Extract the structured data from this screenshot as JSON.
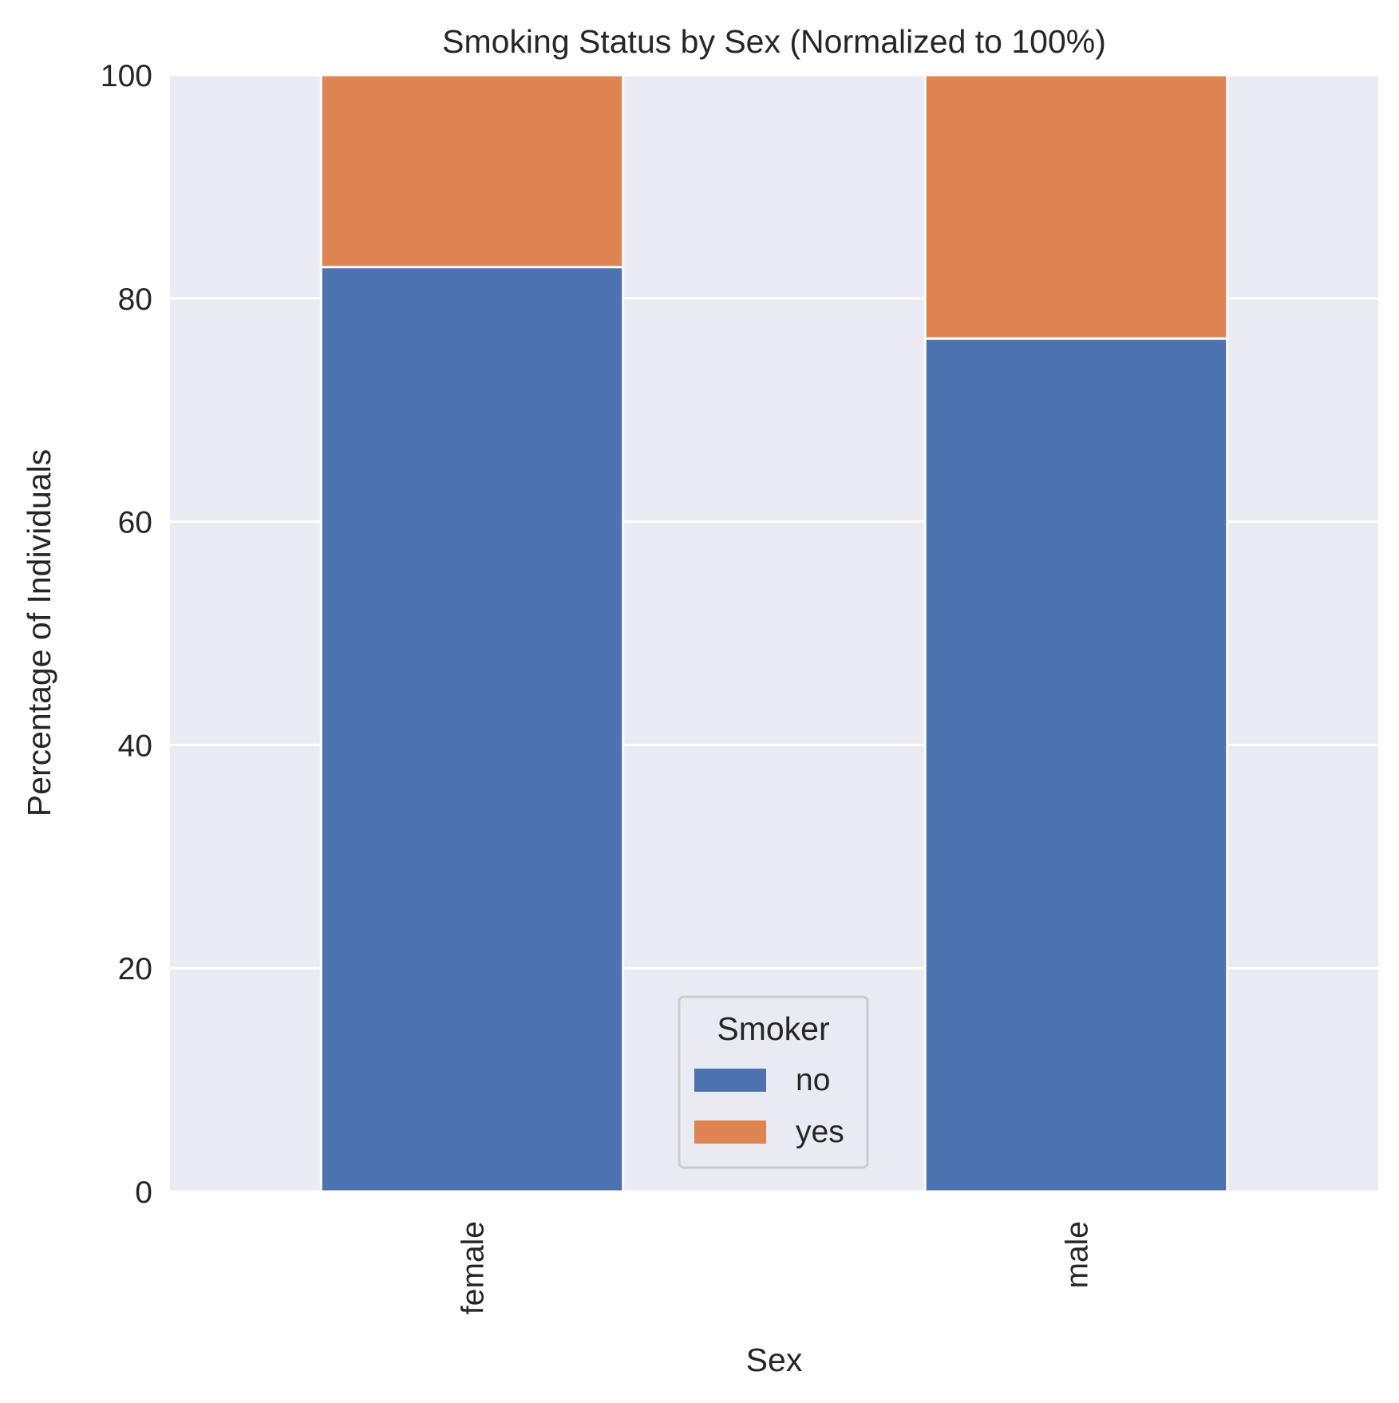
{
  "chart_data": {
    "type": "bar",
    "stacked": true,
    "title": "Smoking Status by Sex (Normalized to 100%)",
    "xlabel": "Sex",
    "ylabel": "Percentage of Individuals",
    "categories": [
      "female",
      "male"
    ],
    "series": [
      {
        "name": "no",
        "values": [
          82.8,
          76.4
        ],
        "color": "#4c72b0"
      },
      {
        "name": "yes",
        "values": [
          17.2,
          23.6
        ],
        "color": "#dd8452"
      }
    ],
    "ylim": [
      0,
      100
    ],
    "yticks": [
      "0",
      "20",
      "40",
      "60",
      "80",
      "100"
    ],
    "grid": true,
    "legend": {
      "title": "Smoker",
      "placement": "lower center"
    },
    "background_color": "#eaeaf2",
    "grid_color": "#ffffff"
  }
}
